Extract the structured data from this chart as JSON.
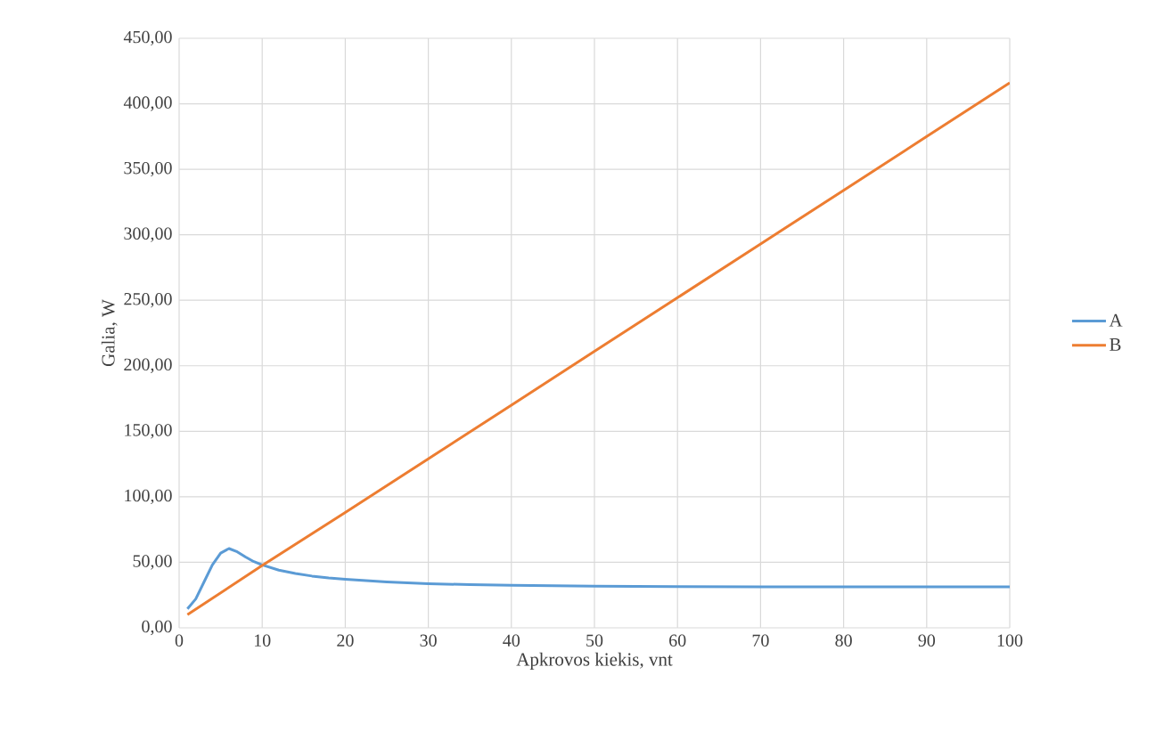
{
  "chart_data": {
    "type": "line",
    "xlabel": "Apkrovos kiekis, vnt",
    "ylabel": "Galia, W",
    "xlim": [
      0,
      100
    ],
    "xticks": [
      0,
      10,
      20,
      30,
      40,
      50,
      60,
      70,
      80,
      90,
      100
    ],
    "ylim": [
      0,
      450
    ],
    "yticks": [
      {
        "value": 0,
        "label": "0,00"
      },
      {
        "value": 50,
        "label": "50,00"
      },
      {
        "value": 100,
        "label": "100,00"
      },
      {
        "value": 150,
        "label": "150,00"
      },
      {
        "value": 200,
        "label": "200,00"
      },
      {
        "value": 250,
        "label": "250,00"
      },
      {
        "value": 300,
        "label": "300,00"
      },
      {
        "value": 350,
        "label": "350,00"
      },
      {
        "value": 400,
        "label": "400,00"
      },
      {
        "value": 450,
        "label": "450,00"
      }
    ],
    "grid": true,
    "legend": "right",
    "marker": "none",
    "line_style": "solid",
    "series": [
      {
        "name": "A",
        "color": "#5b9bd5",
        "x": [
          1,
          2,
          3,
          4,
          5,
          6,
          7,
          8,
          9,
          10,
          12,
          14,
          16,
          18,
          20,
          25,
          30,
          35,
          40,
          50,
          60,
          70,
          80,
          90,
          100
        ],
        "values": [
          14.5,
          22,
          35,
          48,
          57,
          60.5,
          58,
          54,
          50.5,
          48,
          44,
          41.5,
          39.5,
          38,
          37,
          35,
          33.7,
          32.9,
          32.4,
          31.8,
          31.5,
          31.3,
          31.2,
          31.2,
          31.3
        ]
      },
      {
        "name": "B",
        "color": "#ed7d31",
        "x": [
          1,
          10,
          20,
          30,
          40,
          50,
          60,
          70,
          80,
          90,
          100
        ],
        "values": [
          10,
          47.5,
          88,
          129,
          170,
          211,
          252,
          293,
          334,
          375,
          416
        ]
      }
    ]
  }
}
